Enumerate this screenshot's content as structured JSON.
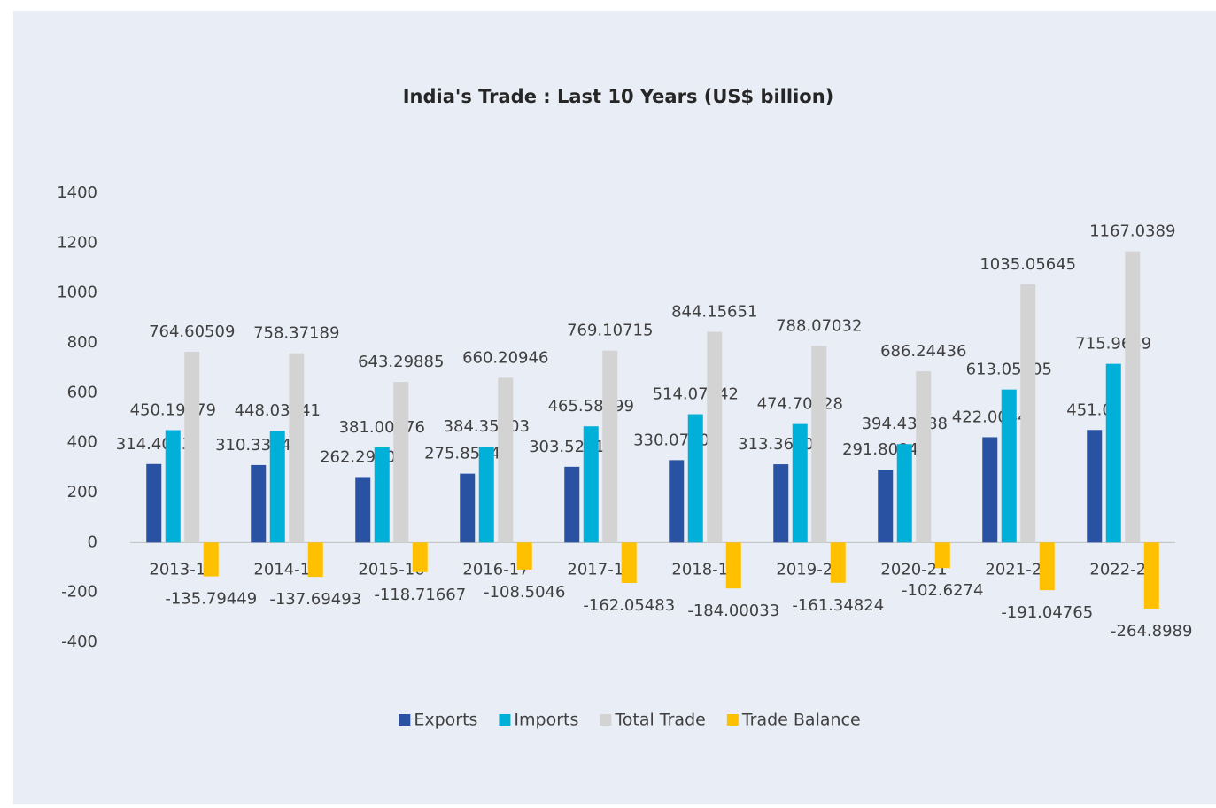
{
  "chart_data": {
    "type": "bar",
    "title": "India's Trade : Last 10 Years (US$ billion)",
    "categories": [
      "2013-14",
      "2014-15",
      "2015-16",
      "2016-17",
      "2017-18",
      "2018-19",
      "2019-20",
      "2020-21",
      "2021-22",
      "2022-23"
    ],
    "series": [
      {
        "name": "Exports",
        "color": "#2a52a3",
        "values": [
          314.4053,
          310.33848,
          262.29109,
          275.85243,
          303.52616,
          330.07809,
          313.36104,
          291.80848,
          422.0044,
          451.07
        ]
      },
      {
        "name": "Imports",
        "color": "#00b0d8",
        "values": [
          450.19979,
          448.03341,
          381.00776,
          384.35703,
          465.58099,
          514.07842,
          474.70928,
          394.43588,
          613.05205,
          715.9689
        ]
      },
      {
        "name": "Total Trade",
        "color": "#d3d3d3",
        "values": [
          764.60509,
          758.37189,
          643.29885,
          660.20946,
          769.10715,
          844.15651,
          788.07032,
          686.24436,
          1035.05645,
          1167.0389
        ]
      },
      {
        "name": "Trade Balance",
        "color": "#ffc000",
        "values": [
          -135.79449,
          -137.69493,
          -118.71667,
          -108.5046,
          -162.05483,
          -184.00033,
          -161.34824,
          -102.6274,
          -191.04765,
          -264.8989
        ]
      }
    ],
    "ylim": [
      -400,
      1400
    ],
    "yticks": [
      -400,
      -200,
      0,
      200,
      400,
      600,
      800,
      1000,
      1200,
      1400
    ],
    "legend": "bottom"
  }
}
